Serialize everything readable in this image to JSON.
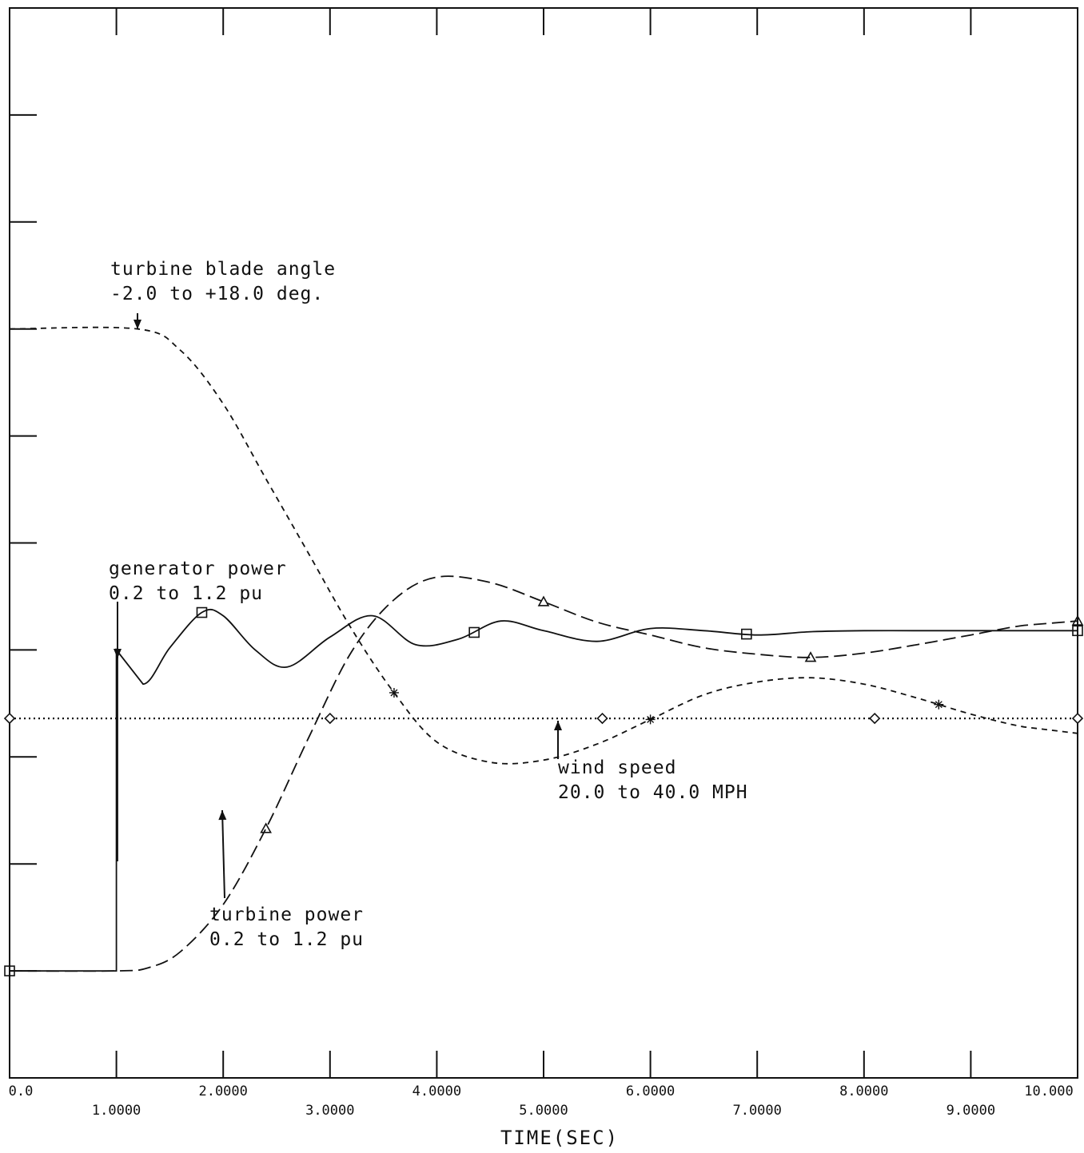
{
  "chart_data": {
    "type": "line",
    "xlabel": "TIME(SEC)",
    "xlim": [
      0,
      10
    ],
    "x_ticks_upper": [
      "0.0",
      "2.0000",
      "4.0000",
      "6.0000",
      "8.0000",
      "10.000"
    ],
    "x_ticks_lower": [
      "1.0000",
      "3.0000",
      "5.0000",
      "7.0000",
      "9.0000"
    ],
    "y_grid_fraction": [
      0,
      0.1,
      0.2,
      0.3,
      0.4,
      0.5,
      0.6,
      0.7,
      0.8,
      0.9,
      1.0
    ],
    "series": [
      {
        "name": "turbine blade angle",
        "range_label": "-2.0 to +18.0 deg.",
        "style": "short-dash",
        "marker": "star",
        "x": [
          0,
          1.2,
          1.6,
          2.0,
          2.4,
          2.8,
          3.2,
          3.6,
          4.0,
          4.5,
          5.0,
          5.5,
          6.0,
          6.5,
          7.0,
          7.5,
          8.0,
          8.5,
          9.0,
          9.5,
          10.0
        ],
        "y": [
          0.7,
          0.7,
          0.68,
          0.63,
          0.56,
          0.49,
          0.42,
          0.36,
          0.314,
          0.295,
          0.297,
          0.312,
          0.335,
          0.358,
          0.37,
          0.374,
          0.368,
          0.355,
          0.34,
          0.328,
          0.322
        ]
      },
      {
        "name": "generator power",
        "range_label": "0.2 to 1.2 pu",
        "style": "solid",
        "marker": "square",
        "x": [
          0,
          1.0,
          1.0,
          1.25,
          1.5,
          1.8,
          2.0,
          2.3,
          2.6,
          3.0,
          3.4,
          3.8,
          4.2,
          4.6,
          5.0,
          5.5,
          6.0,
          6.5,
          7.0,
          7.5,
          8.0,
          8.5,
          9.0,
          9.5,
          10.0
        ],
        "y": [
          0.1,
          0.1,
          0.4,
          0.368,
          0.402,
          0.435,
          0.432,
          0.4,
          0.384,
          0.412,
          0.432,
          0.405,
          0.41,
          0.427,
          0.418,
          0.408,
          0.42,
          0.418,
          0.414,
          0.417,
          0.418,
          0.418,
          0.418,
          0.418,
          0.418
        ]
      },
      {
        "name": "turbine power",
        "range_label": "0.2 to 1.2 pu",
        "style": "long-dash",
        "marker": "triangle",
        "x": [
          0,
          1.0,
          1.3,
          1.6,
          2.0,
          2.4,
          2.8,
          3.2,
          3.6,
          4.0,
          4.5,
          5.0,
          5.5,
          6.0,
          6.5,
          7.0,
          7.5,
          8.0,
          8.5,
          9.0,
          9.5,
          10.0
        ],
        "y": [
          0.1,
          0.1,
          0.103,
          0.118,
          0.162,
          0.233,
          0.318,
          0.398,
          0.447,
          0.468,
          0.463,
          0.445,
          0.426,
          0.414,
          0.402,
          0.396,
          0.393,
          0.397,
          0.405,
          0.414,
          0.423,
          0.427
        ]
      },
      {
        "name": "wind speed",
        "range_label": "20.0 to 40.0 MPH",
        "style": "dotted",
        "marker": "diamond",
        "x": [
          0,
          10
        ],
        "y": [
          0.336,
          0.336
        ]
      }
    ]
  },
  "annotations": {
    "blade_angle": {
      "line1": "turbine blade angle",
      "line2": "-2.0 to +18.0 deg."
    },
    "generator_power": {
      "line1": "generator power",
      "line2": "0.2 to 1.2 pu"
    },
    "wind_speed": {
      "line1": "wind speed",
      "line2": "20.0 to 40.0 MPH"
    },
    "turbine_power": {
      "line1": "turbine power",
      "line2": "0.2 to 1.2 pu"
    }
  }
}
